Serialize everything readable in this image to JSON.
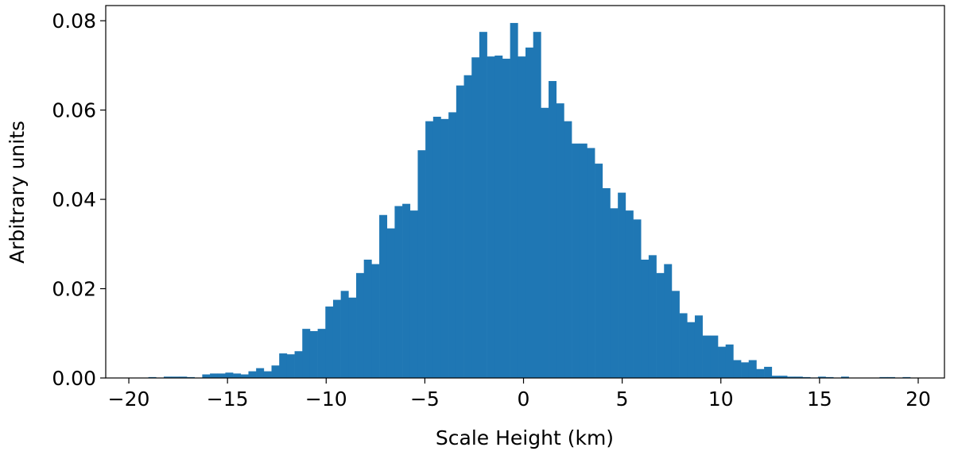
{
  "chart_data": {
    "type": "histogram",
    "xlabel": "Scale Height (km)",
    "ylabel": "Arbitrary units",
    "color": "#1f77b4",
    "bins": [
      -19.4,
      -19.01,
      -18.62,
      -18.23,
      -17.84,
      -17.45,
      -17.06,
      -16.67,
      -16.28,
      -15.89,
      -15.5,
      -15.11,
      -14.72,
      -14.33,
      -13.94,
      -13.55,
      -13.16,
      -12.77,
      -12.38,
      -11.99,
      -11.6,
      -11.21,
      -10.82,
      -10.43,
      -10.04,
      -9.65,
      -9.26,
      -8.87,
      -8.48,
      -8.09,
      -7.7,
      -7.31,
      -6.92,
      -6.53,
      -6.14,
      -5.75,
      -5.36,
      -4.97,
      -4.58,
      -4.19,
      -3.8,
      -3.41,
      -3.02,
      -2.63,
      -2.24,
      -1.85,
      -1.46,
      -1.07,
      -0.68,
      -0.29,
      0.1,
      0.49,
      0.88,
      1.27,
      1.66,
      2.05,
      2.44,
      2.83,
      3.22,
      3.61,
      4.0,
      4.39,
      4.78,
      5.17,
      5.56,
      5.95,
      6.34,
      6.73,
      7.12,
      7.51,
      7.9,
      8.29,
      8.68,
      9.07,
      9.46,
      9.85,
      10.24,
      10.63,
      11.02,
      11.41,
      11.8,
      12.19,
      12.58,
      12.97,
      13.36,
      13.75,
      14.14,
      14.53,
      14.92,
      15.31,
      15.7,
      16.09,
      16.48,
      16.87,
      17.26,
      17.65,
      18.04,
      18.43,
      18.82,
      19.21,
      19.6
    ],
    "values": [
      0,
      0.0002,
      0,
      0.0003,
      0.0003,
      0.0003,
      0.0002,
      0,
      0.0008,
      0.001,
      0.001,
      0.0012,
      0.001,
      0.0008,
      0.0015,
      0.0022,
      0.0015,
      0.0028,
      0.0055,
      0.0053,
      0.006,
      0.011,
      0.0105,
      0.011,
      0.016,
      0.0175,
      0.0195,
      0.018,
      0.0235,
      0.0265,
      0.0255,
      0.0365,
      0.0335,
      0.0385,
      0.039,
      0.0375,
      0.051,
      0.0575,
      0.0585,
      0.058,
      0.0595,
      0.0655,
      0.0678,
      0.0718,
      0.0775,
      0.072,
      0.0722,
      0.0715,
      0.0795,
      0.072,
      0.074,
      0.0775,
      0.0605,
      0.0665,
      0.0615,
      0.0575,
      0.0525,
      0.0525,
      0.0515,
      0.048,
      0.0425,
      0.038,
      0.0415,
      0.0375,
      0.0355,
      0.0265,
      0.0275,
      0.0235,
      0.0255,
      0.0195,
      0.0145,
      0.0125,
      0.014,
      0.0095,
      0.0095,
      0.007,
      0.0075,
      0.004,
      0.0035,
      0.004,
      0.002,
      0.0025,
      0.0005,
      0.0005,
      0.0003,
      0.0003,
      0.0002,
      0.0001,
      0.0003,
      0.0002,
      0,
      0.0003,
      0,
      0,
      0,
      0,
      0.0002,
      0.0002,
      0,
      0.0002
    ],
    "xlim": [
      -21.17,
      21.33
    ],
    "xticks": [
      {
        "value": -20,
        "label": "−20"
      },
      {
        "value": -15,
        "label": "−15"
      },
      {
        "value": -10,
        "label": "−10"
      },
      {
        "value": -5,
        "label": "−5"
      },
      0,
      5,
      10,
      15,
      20
    ],
    "ylim": [
      0,
      0.0834
    ],
    "yticks": [
      {
        "value": 0,
        "label": "0.00"
      },
      {
        "value": 0.02,
        "label": "0.02"
      },
      {
        "value": 0.04,
        "label": "0.04"
      },
      {
        "value": 0.06,
        "label": "0.06"
      },
      {
        "value": 0.08,
        "label": "0.08"
      }
    ],
    "grid": false
  }
}
